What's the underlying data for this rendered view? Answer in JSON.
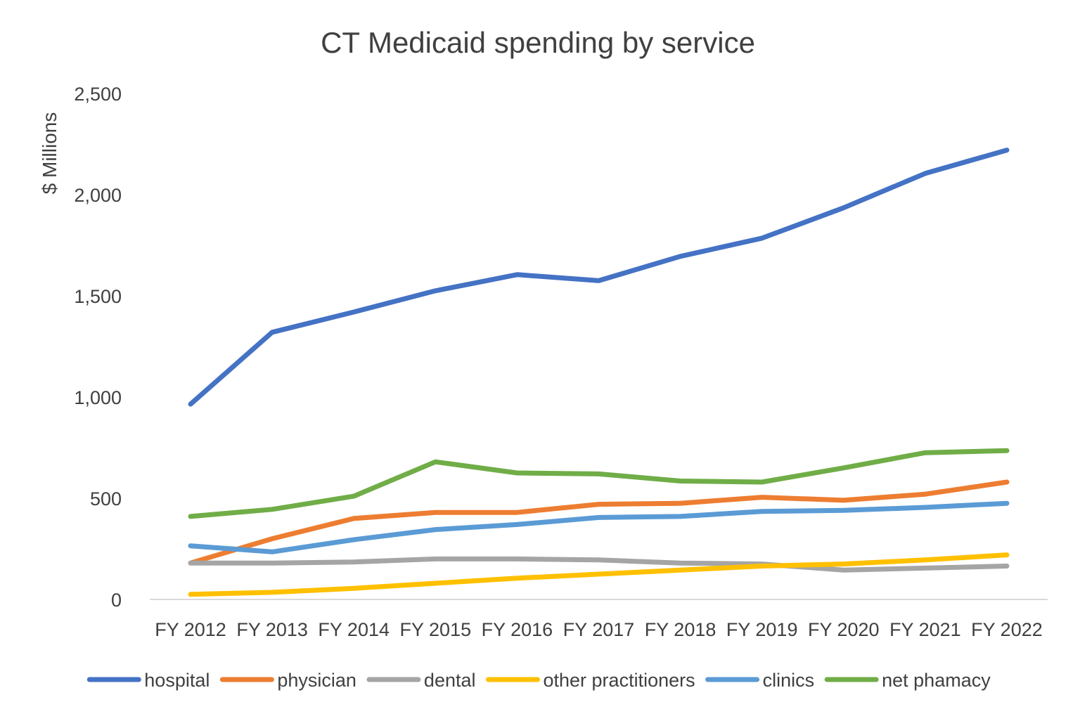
{
  "chart_data": {
    "type": "line",
    "title": "CT Medicaid spending by service",
    "xlabel": "",
    "ylabel": "$ Millions",
    "ylim": [
      0,
      2500
    ],
    "yticks": [
      0,
      500,
      1000,
      1500,
      2000,
      2500
    ],
    "ytick_labels": [
      "0",
      "500",
      "1,000",
      "1,500",
      "2,000",
      "2,500"
    ],
    "grid": false,
    "legend_position": "bottom",
    "categories": [
      "FY 2012",
      "FY 2013",
      "FY 2014",
      "FY 2015",
      "FY 2016",
      "FY 2017",
      "FY 2018",
      "FY 2019",
      "FY 2020",
      "FY 2021",
      "FY 2022"
    ],
    "series": [
      {
        "name": "hospital",
        "color": "#4472C4",
        "values": [
          965,
          1320,
          1420,
          1525,
          1605,
          1575,
          1695,
          1785,
          1935,
          2105,
          2220
        ]
      },
      {
        "name": "physician",
        "color": "#ED7D31",
        "values": [
          180,
          300,
          400,
          430,
          430,
          470,
          475,
          505,
          490,
          520,
          580
        ]
      },
      {
        "name": "dental",
        "color": "#A5A5A5",
        "values": [
          180,
          180,
          185,
          200,
          200,
          195,
          180,
          175,
          145,
          155,
          165
        ]
      },
      {
        "name": "other practitioners",
        "color": "#FFC000",
        "values": [
          25,
          35,
          55,
          80,
          105,
          125,
          145,
          165,
          175,
          195,
          220
        ]
      },
      {
        "name": "clinics",
        "color": "#5B9BD5",
        "values": [
          265,
          235,
          295,
          345,
          370,
          405,
          410,
          435,
          440,
          455,
          475
        ]
      },
      {
        "name": "net phamacy",
        "color": "#70AD47",
        "values": [
          410,
          445,
          510,
          680,
          625,
          620,
          585,
          580,
          650,
          725,
          735
        ]
      }
    ]
  }
}
